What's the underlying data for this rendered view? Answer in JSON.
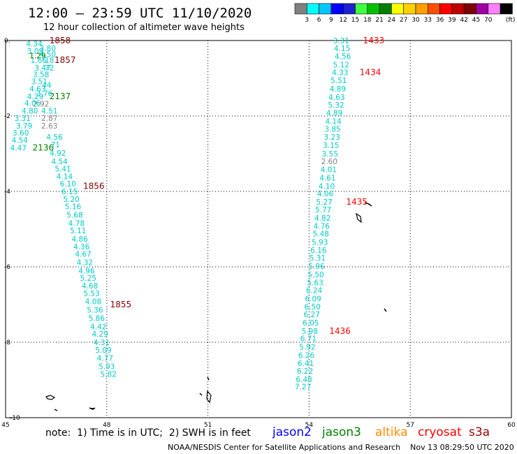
{
  "header": {
    "title": "12:00 – 23:59 UTC 11/10/2020",
    "subtitle": "12 hour collection of altimeter wave heights"
  },
  "colorbar": {
    "unit": "(ft)",
    "ticks": [
      "3",
      "6",
      "9",
      "12",
      "15",
      "18",
      "21",
      "24",
      "27",
      "30",
      "33",
      "36",
      "39",
      "42",
      "45",
      "70"
    ],
    "colors": [
      "#808080",
      "#00ffff",
      "#00c8ff",
      "#0000ff",
      "#2020d0",
      "#40ff40",
      "#00c000",
      "#008000",
      "#ffff00",
      "#ffd000",
      "#ffa000",
      "#ff5000",
      "#ff0000",
      "#c00000",
      "#800000",
      "#a000a0",
      "#ff80ff",
      "#000000"
    ]
  },
  "footer": {
    "note": "note:  1) Time is in UTC;  2) SWH is in feet",
    "credit": "NOAA/NESDIS Center for Satellite Applications and Research    Nov 13 08:29:50 UTC 2020"
  },
  "legend": [
    {
      "name": "jason2",
      "color": "#0000ff"
    },
    {
      "name": "jason3",
      "color": "#008000"
    },
    {
      "name": "altika",
      "color": "#ff8c00"
    },
    {
      "name": "cryosat",
      "color": "#ff0000"
    },
    {
      "name": "s3a",
      "color": "#a00000"
    }
  ],
  "chart_data": {
    "type": "scatter",
    "title": "12:00 – 23:59 UTC 11/10/2020",
    "subtitle": "12 hour collection of altimeter wave heights",
    "xlim": [
      45,
      60
    ],
    "ylim": [
      -10,
      0
    ],
    "xticks": [
      45,
      48,
      51,
      54,
      57,
      60
    ],
    "yticks": [
      0,
      -2,
      -4,
      -6,
      -8,
      -10
    ],
    "grid": true,
    "series": [
      {
        "name": "s3a",
        "color": "#00cccc",
        "values": [
          {
            "x": 45.85,
            "y": -0.08,
            "v": "4.34"
          },
          {
            "x": 45.88,
            "y": -0.28,
            "v": "3.09"
          },
          {
            "x": 46.25,
            "y": -0.2,
            "v": "3.80"
          },
          {
            "x": 46.25,
            "y": -0.36,
            "v": "4.50"
          },
          {
            "x": 45.98,
            "y": -0.52,
            "v": "1.66"
          },
          {
            "x": 46.3,
            "y": -0.52,
            "v": "18"
          },
          {
            "x": 46.1,
            "y": -0.72,
            "v": "3.47"
          },
          {
            "x": 46.3,
            "y": -0.72,
            "v": "72"
          },
          {
            "x": 46.05,
            "y": -0.9,
            "v": "3.58"
          },
          {
            "x": 46.0,
            "y": -1.08,
            "v": "3.51"
          },
          {
            "x": 46.22,
            "y": -1.18,
            "v": "44"
          },
          {
            "x": 45.95,
            "y": -1.28,
            "v": "4.63"
          },
          {
            "x": 46.15,
            "y": -1.4,
            "v": "3.76"
          },
          {
            "x": 45.88,
            "y": -1.48,
            "v": "4.29"
          },
          {
            "x": 45.8,
            "y": -1.66,
            "v": "4.06"
          },
          {
            "x": 45.72,
            "y": -1.86,
            "v": "4.80"
          },
          {
            "x": 46.3,
            "y": -1.86,
            "v": "4.51"
          },
          {
            "x": 45.5,
            "y": -2.06,
            "v": "3.31"
          },
          {
            "x": 45.55,
            "y": -2.26,
            "v": "3.79"
          },
          {
            "x": 45.45,
            "y": -2.44,
            "v": "3.60"
          },
          {
            "x": 45.42,
            "y": -2.64,
            "v": "4.54"
          },
          {
            "x": 45.38,
            "y": -2.84,
            "v": "4.47"
          },
          {
            "x": 46.45,
            "y": -2.56,
            "v": "4.56"
          },
          {
            "x": 46.48,
            "y": -2.76,
            "v": "71"
          },
          {
            "x": 46.55,
            "y": -2.98,
            "v": "4.92"
          },
          {
            "x": 46.6,
            "y": -3.2,
            "v": "4.54"
          },
          {
            "x": 46.7,
            "y": -3.4,
            "v": "5.41"
          },
          {
            "x": 46.75,
            "y": -3.6,
            "v": "4.14"
          },
          {
            "x": 46.85,
            "y": -3.8,
            "v": "6.10"
          },
          {
            "x": 46.9,
            "y": -4.0,
            "v": "6.15"
          },
          {
            "x": 46.95,
            "y": -4.2,
            "v": "5.20"
          },
          {
            "x": 47.0,
            "y": -4.4,
            "v": "5.16"
          },
          {
            "x": 47.05,
            "y": -4.62,
            "v": "5.68"
          },
          {
            "x": 47.1,
            "y": -4.84,
            "v": "4.78"
          },
          {
            "x": 47.15,
            "y": -5.04,
            "v": "5.11"
          },
          {
            "x": 47.2,
            "y": -5.26,
            "v": "4.86"
          },
          {
            "x": 47.25,
            "y": -5.46,
            "v": "4.36"
          },
          {
            "x": 47.3,
            "y": -5.66,
            "v": "4.67"
          },
          {
            "x": 47.35,
            "y": -5.88,
            "v": "4.32"
          },
          {
            "x": 47.4,
            "y": -6.1,
            "v": "4.96"
          },
          {
            "x": 47.45,
            "y": -6.3,
            "v": "5.25"
          },
          {
            "x": 47.5,
            "y": -6.5,
            "v": "4.68"
          },
          {
            "x": 47.55,
            "y": -6.7,
            "v": "5.53"
          },
          {
            "x": 47.6,
            "y": -6.92,
            "v": "4.08"
          },
          {
            "x": 47.65,
            "y": -7.14,
            "v": "5.36"
          },
          {
            "x": 47.7,
            "y": -7.36,
            "v": "5.86"
          },
          {
            "x": 47.75,
            "y": -7.58,
            "v": "4.42"
          },
          {
            "x": 47.8,
            "y": -7.78,
            "v": "4.29"
          },
          {
            "x": 47.85,
            "y": -8.0,
            "v": "4.31"
          },
          {
            "x": 47.9,
            "y": -8.2,
            "v": "5.09"
          },
          {
            "x": 47.95,
            "y": -8.42,
            "v": "4.77"
          },
          {
            "x": 48.0,
            "y": -8.64,
            "v": "5.93"
          },
          {
            "x": 48.05,
            "y": -8.84,
            "v": "5.82"
          },
          {
            "x": 54.95,
            "y": 0.0,
            "v": "3.31"
          },
          {
            "x": 54.98,
            "y": -0.2,
            "v": "4.15"
          },
          {
            "x": 55.0,
            "y": -0.42,
            "v": "4.56"
          },
          {
            "x": 54.95,
            "y": -0.64,
            "v": "5.12"
          },
          {
            "x": 54.92,
            "y": -0.84,
            "v": "4.33"
          },
          {
            "x": 54.88,
            "y": -1.06,
            "v": "5.51"
          },
          {
            "x": 54.85,
            "y": -1.28,
            "v": "4.89"
          },
          {
            "x": 54.82,
            "y": -1.5,
            "v": "4.63"
          },
          {
            "x": 54.8,
            "y": -1.7,
            "v": "5.32"
          },
          {
            "x": 54.75,
            "y": -1.92,
            "v": "4.89"
          },
          {
            "x": 54.72,
            "y": -2.14,
            "v": "4.14"
          },
          {
            "x": 54.7,
            "y": -2.34,
            "v": "3.85"
          },
          {
            "x": 54.68,
            "y": -2.56,
            "v": "3.23"
          },
          {
            "x": 54.65,
            "y": -2.78,
            "v": "3.15"
          },
          {
            "x": 54.62,
            "y": -3.0,
            "v": "3.55"
          },
          {
            "x": 54.58,
            "y": -3.42,
            "v": "4.01"
          },
          {
            "x": 54.55,
            "y": -3.64,
            "v": "4.61"
          },
          {
            "x": 54.52,
            "y": -3.86,
            "v": "4.10"
          },
          {
            "x": 54.48,
            "y": -4.06,
            "v": "4.06"
          },
          {
            "x": 54.45,
            "y": -4.28,
            "v": "5.27"
          },
          {
            "x": 54.42,
            "y": -4.48,
            "v": "5.77"
          },
          {
            "x": 54.4,
            "y": -4.7,
            "v": "4.82"
          },
          {
            "x": 54.37,
            "y": -4.92,
            "v": "4.76"
          },
          {
            "x": 54.35,
            "y": -5.12,
            "v": "5.48"
          },
          {
            "x": 54.32,
            "y": -5.34,
            "v": "5.93"
          },
          {
            "x": 54.28,
            "y": -5.56,
            "v": "6.16"
          },
          {
            "x": 54.25,
            "y": -5.76,
            "v": "5.31"
          },
          {
            "x": 54.22,
            "y": -5.98,
            "v": "5.96"
          },
          {
            "x": 54.2,
            "y": -6.2,
            "v": "5.50"
          },
          {
            "x": 54.18,
            "y": -6.42,
            "v": "5.63"
          },
          {
            "x": 54.15,
            "y": -6.62,
            "v": "6.24"
          },
          {
            "x": 54.12,
            "y": -6.84,
            "v": "6.09"
          },
          {
            "x": 54.1,
            "y": -7.06,
            "v": "6.50"
          },
          {
            "x": 54.08,
            "y": -7.26,
            "v": "6.27"
          },
          {
            "x": 54.05,
            "y": -7.48,
            "v": "6.05"
          },
          {
            "x": 54.02,
            "y": -7.7,
            "v": "5.98"
          },
          {
            "x": 53.98,
            "y": -7.9,
            "v": "6.71"
          },
          {
            "x": 53.95,
            "y": -8.12,
            "v": "5.92"
          },
          {
            "x": 53.92,
            "y": -8.34,
            "v": "6.26"
          },
          {
            "x": 53.9,
            "y": -8.56,
            "v": "6.41"
          },
          {
            "x": 53.88,
            "y": -8.76,
            "v": "6.22"
          },
          {
            "x": 53.85,
            "y": -8.98,
            "v": "6.48"
          },
          {
            "x": 53.82,
            "y": -9.18,
            "v": "7.27"
          }
        ]
      },
      {
        "name": "jason3",
        "color": "#808080",
        "values": [
          {
            "x": 46.05,
            "y": -1.68,
            "v": "2.92"
          },
          {
            "x": 46.3,
            "y": -2.06,
            "v": "2.87"
          },
          {
            "x": 46.3,
            "y": -2.26,
            "v": "2.63"
          },
          {
            "x": 54.6,
            "y": -3.2,
            "v": "2.60"
          }
        ]
      },
      {
        "name": "jason3",
        "color": "#008000",
        "values": [
          {
            "x": 45.95,
            "y": -0.4,
            "v": "1.29"
          }
        ]
      }
    ],
    "time_labels": [
      {
        "x": 46.3,
        "y": 0.0,
        "v": "1858",
        "color": "#800000"
      },
      {
        "x": 46.45,
        "y": -0.52,
        "v": "1857",
        "color": "#800000"
      },
      {
        "x": 46.3,
        "y": -1.48,
        "v": "2137",
        "color": "#008000"
      },
      {
        "x": 45.8,
        "y": -2.84,
        "v": "2136",
        "color": "#008000"
      },
      {
        "x": 47.3,
        "y": -3.86,
        "v": "1856",
        "color": "#800000"
      },
      {
        "x": 48.1,
        "y": -7.0,
        "v": "1855",
        "color": "#800000"
      },
      {
        "x": 55.6,
        "y": 0.0,
        "v": "1433",
        "color": "#ff0000"
      },
      {
        "x": 55.5,
        "y": -0.84,
        "v": "1434",
        "color": "#ff0000"
      },
      {
        "x": 55.1,
        "y": -4.28,
        "v": "1435",
        "color": "#ff0000"
      },
      {
        "x": 54.6,
        "y": -7.7,
        "v": "1436",
        "color": "#ff0000"
      }
    ]
  }
}
